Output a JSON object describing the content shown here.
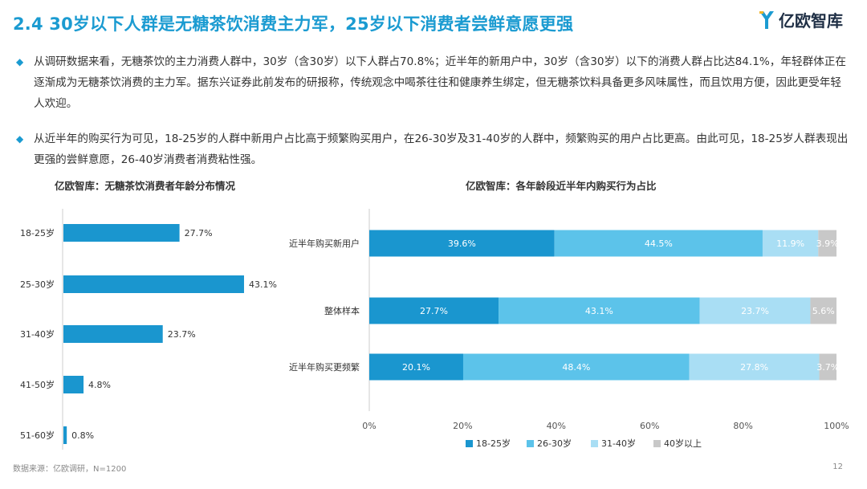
{
  "title": "2.4 30岁以下人群是无糖茶饮消费主力军，25岁以下消费者尝鲜意愿更强",
  "logo": {
    "text": "亿欧智库"
  },
  "bullets": [
    "从调研数据来看，无糖茶饮的主力消费人群中，30岁（含30岁）以下人群占70.8%；近半年的新用户中，30岁（含30岁）以下的消费人群占比达84.1%，年轻群体正在逐渐成为无糖茶饮消费的主力军。据东兴证券此前发布的研报称，传统观念中喝茶往往和健康养生绑定，但无糖茶饮料具备更多风味属性，而且饮用方便，因此更受年轻人欢迎。",
    "从近半年的购买行为可见，18-25岁的人群中新用户占比高于频繁购买用户，在26-30岁及31-40岁的人群中，频繁购买的用户占比更高。由此可见，18-25岁人群表现出更强的尝鲜意愿，26-40岁消费者消费粘性强。"
  ],
  "footer": "数据来源：亿欧调研，N=1200",
  "page_number": "12",
  "colors": {
    "accent": "#1b9bd1",
    "s1": "#1a96cf",
    "s2": "#5cc3ea",
    "s3": "#a9def4",
    "s4": "#c8c8c8"
  },
  "chart_data": [
    {
      "type": "bar",
      "orientation": "horizontal",
      "title": "亿欧智库：无糖茶饮消费者年龄分布情况",
      "categories": [
        "18-25岁",
        "25-30岁",
        "31-40岁",
        "41-50岁",
        "51-60岁"
      ],
      "values": [
        27.7,
        43.1,
        23.7,
        4.8,
        0.8
      ],
      "value_labels": [
        "27.7%",
        "43.1%",
        "23.7%",
        "4.8%",
        "0.8%"
      ],
      "unit": "%",
      "xlim": [
        0,
        50
      ],
      "grid": false
    },
    {
      "type": "bar",
      "orientation": "horizontal",
      "stacked": true,
      "title": "亿欧智库：各年龄段近半年内购买行为占比",
      "categories": [
        "近半年购买新用户",
        "整体样本",
        "近半年购买更频繁"
      ],
      "series": [
        {
          "name": "18-25岁",
          "values": [
            39.6,
            27.7,
            20.1
          ],
          "labels": [
            "39.6%",
            "27.7%",
            "20.1%"
          ]
        },
        {
          "name": "26-30岁",
          "values": [
            44.5,
            43.1,
            48.4
          ],
          "labels": [
            "44.5%",
            "43.1%",
            "48.4%"
          ]
        },
        {
          "name": "31-40岁",
          "values": [
            11.9,
            23.7,
            27.8
          ],
          "labels": [
            "11.9%",
            "23.7%",
            "27.8%"
          ]
        },
        {
          "name": "40岁以上",
          "values": [
            3.9,
            5.6,
            3.7
          ],
          "labels": [
            "3.9%",
            "5.6%",
            "3.7%"
          ]
        }
      ],
      "xlim": [
        0,
        100
      ],
      "xticks": [
        "0%",
        "20%",
        "40%",
        "60%",
        "80%",
        "100%"
      ],
      "legend": "bottom",
      "grid": false
    }
  ]
}
